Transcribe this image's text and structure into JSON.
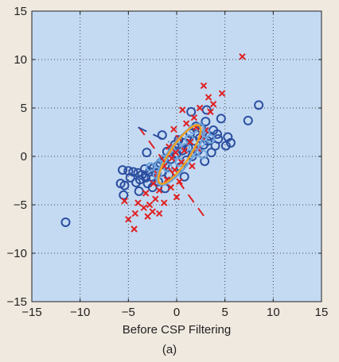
{
  "figure": {
    "caption": "(a)"
  },
  "chart_data": {
    "type": "scatter",
    "title": "",
    "xlabel": "Before CSP Filtering",
    "ylabel": "",
    "xlim": [
      -15,
      15
    ],
    "ylim": [
      -15,
      15
    ],
    "xticks": [
      -15,
      -10,
      -5,
      0,
      5,
      10,
      15
    ],
    "yticks": [
      -15,
      -10,
      -5,
      0,
      5,
      10,
      15
    ],
    "grid": true,
    "colors": {
      "plot_background": "#c4daf3",
      "circles": "#2b4ea0",
      "circles_light": "#6fa6dc",
      "crosses": "#e02020",
      "ellipse_blue": "#6aa0d8",
      "ellipse_orange": "#f0a020",
      "dashed_line": "#e02020",
      "dashed_line_blue": "#2b4ea0"
    },
    "series": [
      {
        "marker": "circle",
        "color": "#2b4ea0",
        "points": [
          [
            -11.5,
            -6.8
          ],
          [
            -5.6,
            -1.4
          ],
          [
            -5.8,
            -2.8
          ],
          [
            -5.4,
            -3.0
          ],
          [
            -5.0,
            -1.5
          ],
          [
            -4.8,
            -2.2
          ],
          [
            -4.5,
            -1.6
          ],
          [
            -4.2,
            -2.7
          ],
          [
            -4.0,
            -1.7
          ],
          [
            -3.8,
            -2.4
          ],
          [
            -3.6,
            -1.9
          ],
          [
            -3.3,
            -1.3
          ],
          [
            -3.2,
            -2.2
          ],
          [
            -3.0,
            -2.8
          ],
          [
            -2.8,
            -1.6
          ],
          [
            -2.6,
            -2.1
          ],
          [
            -2.4,
            -1.2
          ],
          [
            -2.2,
            -1.7
          ],
          [
            -2.0,
            -1.0
          ],
          [
            -1.9,
            -2.6
          ],
          [
            -1.7,
            -0.7
          ],
          [
            -1.5,
            -1.6
          ],
          [
            -1.3,
            -0.5
          ],
          [
            -1.2,
            -0.9
          ],
          [
            -1.0,
            0.5
          ],
          [
            -0.8,
            -1.9
          ],
          [
            -0.6,
            -0.3
          ],
          [
            -0.4,
            0.7
          ],
          [
            -0.2,
            1.2
          ],
          [
            0.0,
            0.3
          ],
          [
            0.2,
            1.7
          ],
          [
            0.4,
            -1.1
          ],
          [
            0.6,
            0.6
          ],
          [
            0.8,
            1.4
          ],
          [
            1.0,
            -0.4
          ],
          [
            1.2,
            0.9
          ],
          [
            1.4,
            2.4
          ],
          [
            1.6,
            0.0
          ],
          [
            1.8,
            1.6
          ],
          [
            2.0,
            3.1
          ],
          [
            2.2,
            0.6
          ],
          [
            2.4,
            1.9
          ],
          [
            2.6,
            2.8
          ],
          [
            2.8,
            1.2
          ],
          [
            3.0,
            3.6
          ],
          [
            3.2,
            1.6
          ],
          [
            3.4,
            2.1
          ],
          [
            3.6,
            0.4
          ],
          [
            3.8,
            2.7
          ],
          [
            4.0,
            1.1
          ],
          [
            4.2,
            2.3
          ],
          [
            4.6,
            3.9
          ],
          [
            5.1,
            1.1
          ],
          [
            5.3,
            2.0
          ],
          [
            5.6,
            1.4
          ],
          [
            7.4,
            3.7
          ],
          [
            8.5,
            5.3
          ],
          [
            -3.9,
            -3.6
          ],
          [
            -5.5,
            -4.0
          ],
          [
            -2.5,
            -3.2
          ],
          [
            -1.2,
            -3.3
          ],
          [
            0.8,
            -2.1
          ],
          [
            2.9,
            -0.5
          ],
          [
            -3.1,
            0.4
          ],
          [
            -1.5,
            2.2
          ],
          [
            1.5,
            4.6
          ],
          [
            3.1,
            4.8
          ],
          [
            4.3,
            1.8
          ]
        ]
      },
      {
        "marker": "circle",
        "color": "#6fa6dc",
        "points": [
          [
            -2.7,
            -1.1
          ],
          [
            -2.0,
            -1.9
          ],
          [
            -1.4,
            -0.3
          ],
          [
            -0.9,
            -1.2
          ],
          [
            -0.3,
            0.1
          ],
          [
            0.3,
            -0.6
          ],
          [
            0.9,
            0.9
          ],
          [
            1.3,
            1.8
          ],
          [
            1.9,
            0.4
          ],
          [
            2.5,
            1.4
          ],
          [
            3.0,
            2.4
          ],
          [
            3.5,
            1.8
          ],
          [
            -1.8,
            -0.8
          ],
          [
            0.1,
            1.0
          ],
          [
            1.7,
            2.8
          ],
          [
            2.7,
            0.2
          ]
        ]
      },
      {
        "marker": "cross",
        "color": "#e02020",
        "points": [
          [
            6.8,
            10.3
          ],
          [
            2.8,
            7.3
          ],
          [
            3.3,
            6.1
          ],
          [
            4.7,
            6.5
          ],
          [
            3.8,
            5.4
          ],
          [
            2.4,
            5.0
          ],
          [
            0.6,
            4.8
          ],
          [
            1.8,
            4.0
          ],
          [
            3.5,
            4.6
          ],
          [
            2.0,
            3.0
          ],
          [
            1.0,
            3.4
          ],
          [
            -0.3,
            2.8
          ],
          [
            2.6,
            2.0
          ],
          [
            1.4,
            1.5
          ],
          [
            0.2,
            1.9
          ],
          [
            -0.8,
            1.0
          ],
          [
            0.8,
            0.6
          ],
          [
            2.2,
            0.8
          ],
          [
            -0.5,
            -0.2
          ],
          [
            0.5,
            -0.6
          ],
          [
            1.6,
            -1.0
          ],
          [
            -1.3,
            -1.0
          ],
          [
            -0.2,
            -1.4
          ],
          [
            -2.0,
            -1.8
          ],
          [
            -1.0,
            -2.4
          ],
          [
            0.3,
            -2.6
          ],
          [
            -2.4,
            -2.8
          ],
          [
            -1.8,
            -3.5
          ],
          [
            -0.6,
            -3.2
          ],
          [
            -3.2,
            -3.8
          ],
          [
            -2.2,
            -4.4
          ],
          [
            -4.0,
            -4.8
          ],
          [
            -3.4,
            -5.3
          ],
          [
            -4.3,
            -5.9
          ],
          [
            -5.0,
            -6.5
          ],
          [
            -4.4,
            -7.5
          ],
          [
            -2.5,
            -5.7
          ],
          [
            -1.3,
            -4.8
          ],
          [
            0.0,
            -4.2
          ],
          [
            -2.8,
            -5.0
          ],
          [
            -5.4,
            -4.6
          ],
          [
            -3.0,
            -6.2
          ],
          [
            -1.8,
            -5.9
          ],
          [
            3.0,
            2.7
          ],
          [
            -0.1,
            0.4
          ]
        ]
      }
    ],
    "ellipses": [
      {
        "cx": 0.4,
        "cy": 0.2,
        "rx": 1.2,
        "ry": 3.8,
        "angle_deg": 36,
        "color": "#6aa0d8"
      },
      {
        "cx": 0.3,
        "cy": 0.2,
        "rx": 1.0,
        "ry": 3.6,
        "angle_deg": 34,
        "color": "#f0a020"
      }
    ],
    "dashed_lines": [
      {
        "from": [
          -3.9,
          3.0
        ],
        "to": [
          3.0,
          -6.4
        ],
        "color": "#e02020"
      },
      {
        "from": [
          -4.0,
          3.0
        ],
        "to": [
          -0.8,
          1.5
        ],
        "color": "#2b4ea0"
      }
    ]
  }
}
